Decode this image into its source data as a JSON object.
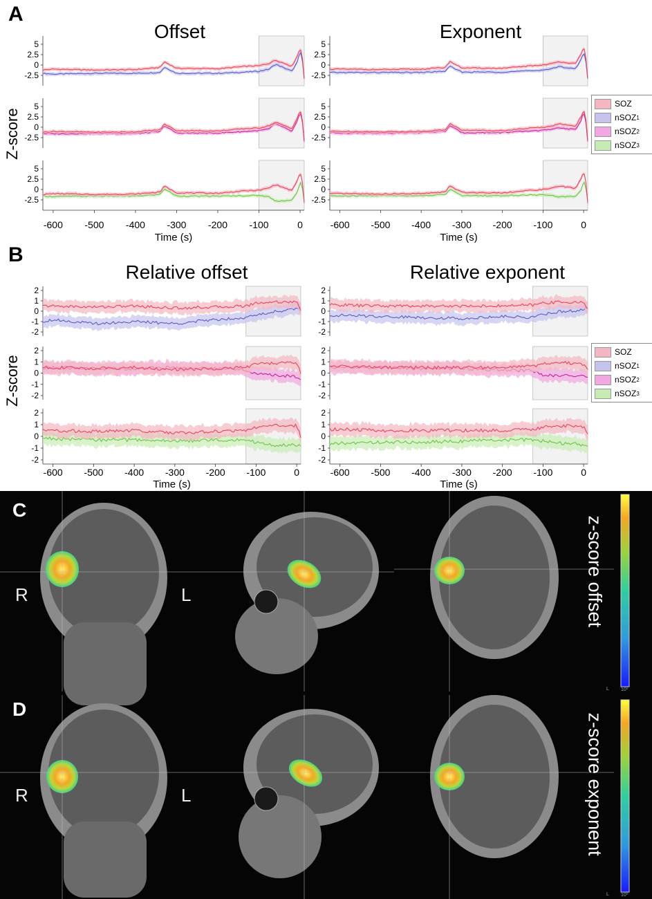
{
  "panels": {
    "A": {
      "label": "A",
      "titles": [
        "Offset",
        "Exponent"
      ],
      "ylabel": "Z-score",
      "xlabel": "Time (s)"
    },
    "B": {
      "label": "B",
      "titles": [
        "Relative offset",
        "Relative exponent"
      ],
      "ylabel": "Z-score",
      "xlabel": "Time (s)"
    },
    "C": {
      "label": "C",
      "left": "R",
      "right": "L",
      "title": "z-score offset",
      "cbar_bottom": "L",
      "cbar_exp": "10⁰"
    },
    "D": {
      "label": "D",
      "left": "R",
      "right": "L",
      "title": "z-score exponent",
      "cbar_bottom": "L",
      "cbar_exp": "10⁰"
    }
  },
  "legend": {
    "soz": "SOZ",
    "n1": "nSOZ",
    "n1_sub": "1",
    "n2": "nSOZ",
    "n2_sub": "2",
    "n3": "nSOZ",
    "n3_sub": "3"
  },
  "colors": {
    "soz": "#e8435a",
    "soz_fill": "#f4b6c0",
    "n1": "#5b58c8",
    "n1_fill": "#c5c3ee",
    "n2": "#c81f9d",
    "n2_fill": "#f2a7e0",
    "n3": "#6ec24a",
    "n3_fill": "#c7ecb3"
  },
  "chart_data": [
    {
      "type": "line",
      "panel": "A",
      "title": "Offset",
      "x_range": [
        -625,
        10
      ],
      "xticks": [
        -600,
        -500,
        -400,
        -300,
        -200,
        -100,
        0
      ],
      "ylim": [
        -4,
        6
      ],
      "yticks": [
        5,
        2.5,
        0,
        -2.5
      ],
      "shaded_window": [
        -100,
        10
      ],
      "rows": [
        [
          "SOZ",
          "nSOZ1"
        ],
        [
          "SOZ",
          "nSOZ2"
        ],
        [
          "SOZ",
          "nSOZ3"
        ]
      ],
      "series": [
        {
          "name": "SOZ",
          "x": [
            -625,
            -600,
            -500,
            -400,
            -340,
            -330,
            -300,
            -200,
            -130,
            -100,
            -75,
            -60,
            -20,
            -5,
            0,
            5,
            10
          ],
          "values": [
            -1.2,
            -1.0,
            -1.2,
            -1.1,
            -0.6,
            0.8,
            -0.8,
            -0.9,
            -0.3,
            -0.2,
            0.4,
            1.2,
            -0.3,
            2.5,
            4.2,
            2.5,
            -3.3
          ]
        },
        {
          "name": "nSOZ1",
          "x": [
            -625,
            -600,
            -500,
            -400,
            -340,
            -330,
            -300,
            -200,
            -130,
            -100,
            -75,
            -60,
            -20,
            -5,
            0,
            5,
            10
          ],
          "values": [
            -2.0,
            -2.2,
            -2.0,
            -2.0,
            -1.8,
            -0.5,
            -2.0,
            -2.0,
            -1.7,
            -1.5,
            -1.0,
            0.2,
            -1.5,
            1.0,
            3.6,
            1.5,
            -3.4
          ]
        },
        {
          "name": "nSOZ2",
          "x": [
            -625,
            -600,
            -500,
            -400,
            -340,
            -330,
            -300,
            -200,
            -130,
            -100,
            -75,
            -60,
            -20,
            -5,
            0,
            5,
            10
          ],
          "values": [
            -1.5,
            -1.6,
            -1.5,
            -1.5,
            -1.1,
            0.4,
            -1.4,
            -1.4,
            -1.0,
            -0.8,
            -0.4,
            0.9,
            -1.0,
            1.8,
            3.8,
            1.8,
            -3.6
          ]
        },
        {
          "name": "nSOZ3",
          "x": [
            -625,
            -600,
            -500,
            -400,
            -340,
            -330,
            -300,
            -200,
            -130,
            -100,
            -75,
            -60,
            -20,
            -5,
            0,
            5,
            10
          ],
          "values": [
            -1.6,
            -1.7,
            -1.6,
            -1.6,
            -1.2,
            0.2,
            -1.6,
            -1.6,
            -1.5,
            -1.4,
            -1.8,
            -2.8,
            -2.6,
            -0.4,
            2.0,
            0.8,
            -2.8
          ]
        }
      ]
    },
    {
      "type": "line",
      "panel": "A",
      "title": "Exponent",
      "x_range": [
        -625,
        10
      ],
      "xticks": [
        -600,
        -500,
        -400,
        -300,
        -200,
        -100,
        0
      ],
      "ylim": [
        -4,
        6
      ],
      "yticks": [
        5,
        2.5,
        0,
        -2.5
      ],
      "shaded_window": [
        -100,
        10
      ],
      "rows": [
        [
          "SOZ",
          "nSOZ1"
        ],
        [
          "SOZ",
          "nSOZ2"
        ],
        [
          "SOZ",
          "nSOZ3"
        ]
      ],
      "series": [
        {
          "name": "SOZ",
          "x": [
            -625,
            -600,
            -500,
            -400,
            -340,
            -330,
            -300,
            -200,
            -130,
            -100,
            -75,
            -60,
            -20,
            -5,
            0,
            5,
            10
          ],
          "values": [
            -1.0,
            -1.0,
            -1.1,
            -1.0,
            -0.6,
            0.9,
            -0.7,
            -0.8,
            -0.2,
            0.0,
            0.4,
            0.8,
            0.3,
            2.8,
            4.4,
            2.5,
            -3.2
          ]
        },
        {
          "name": "nSOZ1",
          "x": [
            -625,
            -600,
            -500,
            -400,
            -340,
            -330,
            -300,
            -200,
            -130,
            -100,
            -75,
            -60,
            -20,
            -5,
            0,
            5,
            10
          ],
          "values": [
            -1.8,
            -1.8,
            -1.8,
            -1.8,
            -1.5,
            -0.3,
            -1.7,
            -1.7,
            -1.4,
            -1.2,
            -0.8,
            -0.4,
            -0.9,
            1.5,
            3.4,
            1.3,
            -3.3
          ]
        },
        {
          "name": "nSOZ2",
          "x": [
            -625,
            -600,
            -500,
            -400,
            -340,
            -330,
            -300,
            -200,
            -130,
            -100,
            -75,
            -60,
            -20,
            -5,
            0,
            5,
            10
          ],
          "values": [
            -1.3,
            -1.4,
            -1.4,
            -1.3,
            -1.0,
            0.4,
            -1.3,
            -1.3,
            -0.9,
            -0.7,
            -0.5,
            -0.1,
            -0.6,
            1.9,
            3.9,
            1.9,
            -3.5
          ]
        },
        {
          "name": "nSOZ3",
          "x": [
            -625,
            -600,
            -500,
            -400,
            -340,
            -330,
            -300,
            -200,
            -130,
            -100,
            -75,
            -60,
            -20,
            -5,
            0,
            5,
            10
          ],
          "values": [
            -1.5,
            -1.6,
            -1.5,
            -1.5,
            -1.2,
            0.1,
            -1.5,
            -1.5,
            -1.3,
            -1.3,
            -1.5,
            -1.8,
            -1.6,
            0.0,
            2.2,
            0.8,
            -2.6
          ]
        }
      ]
    },
    {
      "type": "line",
      "panel": "B",
      "title": "Relative offset",
      "x_range": [
        -625,
        10
      ],
      "xticks": [
        -600,
        -500,
        -400,
        -300,
        -200,
        -100,
        0
      ],
      "ylim": [
        -2,
        2
      ],
      "yticks": [
        2,
        1,
        0,
        -1,
        -2
      ],
      "shaded_window": [
        -125,
        10
      ],
      "rows": [
        [
          "SOZ",
          "nSOZ1"
        ],
        [
          "SOZ",
          "nSOZ2"
        ],
        [
          "SOZ",
          "nSOZ3"
        ]
      ],
      "series": [
        {
          "name": "SOZ",
          "x": [
            -625,
            -600,
            -500,
            -400,
            -300,
            -200,
            -125,
            -100,
            -50,
            0,
            10
          ],
          "values": [
            0.5,
            0.5,
            0.4,
            0.5,
            0.3,
            0.4,
            0.5,
            0.8,
            0.9,
            0.9,
            0.0
          ]
        },
        {
          "name": "nSOZ1",
          "x": [
            -625,
            -600,
            -500,
            -400,
            -300,
            -200,
            -125,
            -100,
            -50,
            0,
            10
          ],
          "values": [
            -1.0,
            -0.8,
            -1.2,
            -1.0,
            -1.2,
            -0.8,
            -0.6,
            -0.4,
            0.0,
            0.2,
            0.4
          ]
        },
        {
          "name": "nSOZ2",
          "x": [
            -625,
            -600,
            -500,
            -400,
            -300,
            -200,
            -125,
            -100,
            -50,
            0,
            10
          ],
          "values": [
            0.4,
            0.5,
            0.4,
            0.4,
            0.5,
            0.4,
            0.3,
            -0.1,
            -0.2,
            -0.3,
            -0.5
          ]
        },
        {
          "name": "nSOZ3",
          "x": [
            -625,
            -600,
            -500,
            -400,
            -300,
            -200,
            -125,
            -100,
            -50,
            0,
            10
          ],
          "values": [
            -0.1,
            -0.2,
            -0.3,
            -0.3,
            -0.4,
            -0.3,
            -0.3,
            -0.5,
            -0.8,
            -0.7,
            -0.8
          ]
        }
      ]
    },
    {
      "type": "line",
      "panel": "B",
      "title": "Relative exponent",
      "x_range": [
        -625,
        10
      ],
      "xticks": [
        -600,
        -500,
        -400,
        -300,
        -200,
        -100,
        0
      ],
      "ylim": [
        -2,
        2
      ],
      "yticks": [
        2,
        1,
        0,
        -1,
        -2
      ],
      "shaded_window": [
        -125,
        10
      ],
      "rows": [
        [
          "SOZ",
          "nSOZ1"
        ],
        [
          "SOZ",
          "nSOZ2"
        ],
        [
          "SOZ",
          "nSOZ3"
        ]
      ],
      "series": [
        {
          "name": "SOZ",
          "x": [
            -625,
            -600,
            -500,
            -400,
            -300,
            -200,
            -125,
            -100,
            -50,
            0,
            10
          ],
          "values": [
            0.6,
            0.6,
            0.5,
            0.5,
            0.5,
            0.5,
            0.6,
            0.8,
            0.9,
            0.8,
            0.3
          ]
        },
        {
          "name": "nSOZ1",
          "x": [
            -625,
            -600,
            -500,
            -400,
            -300,
            -200,
            -125,
            -100,
            -50,
            0,
            10
          ],
          "values": [
            -0.4,
            -0.4,
            -0.5,
            -0.6,
            -0.7,
            -0.5,
            -0.6,
            -0.3,
            0.0,
            0.1,
            0.4
          ]
        },
        {
          "name": "nSOZ2",
          "x": [
            -625,
            -600,
            -500,
            -400,
            -300,
            -200,
            -125,
            -100,
            -50,
            0,
            10
          ],
          "values": [
            0.5,
            0.5,
            0.5,
            0.4,
            0.4,
            0.3,
            0.2,
            -0.2,
            -0.2,
            -0.3,
            -0.4
          ]
        },
        {
          "name": "nSOZ3",
          "x": [
            -625,
            -600,
            -500,
            -400,
            -300,
            -200,
            -125,
            -100,
            -50,
            0,
            10
          ],
          "values": [
            -0.7,
            -0.6,
            -0.5,
            -0.5,
            -0.4,
            -0.3,
            -0.3,
            -0.4,
            -0.6,
            -0.7,
            -0.8
          ]
        }
      ]
    }
  ]
}
